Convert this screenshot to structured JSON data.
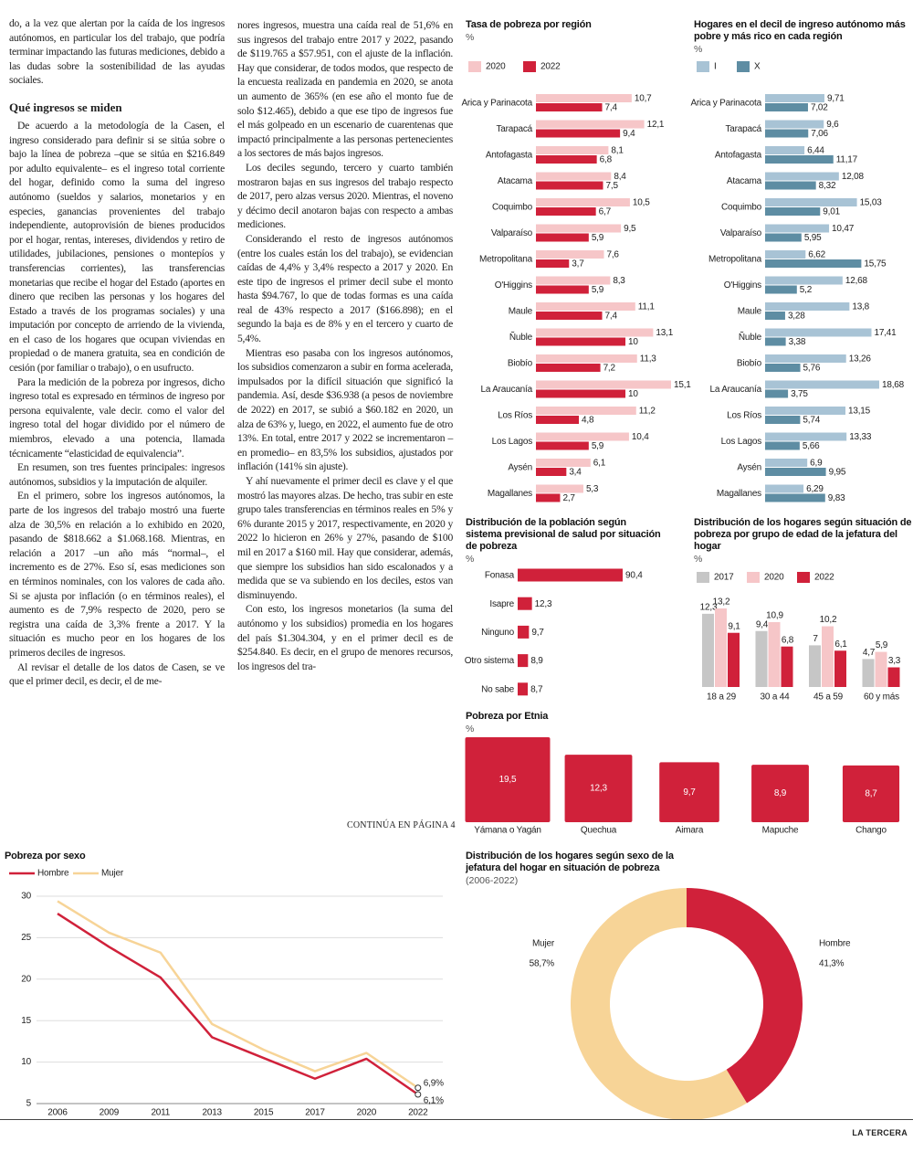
{
  "article": {
    "lead": "do, a la vez que alertan por la caída de los ingresos autónomos, en particular los del trabajo, que podría terminar impactando las futuras mediciones, debido a las dudas sobre la sostenibilidad de las ayudas sociales.",
    "heading": "Qué ingresos se miden",
    "column_1": [
      "De acuerdo a la metodología de la Casen, el ingreso considerado para definir si se sitúa sobre o bajo la línea de pobreza –que se sitúa en $216.849 por adulto equivalente– es el ingreso total corriente del hogar, definido como la suma del ingreso autónomo (sueldos y salarios, monetarios y en especies, ganancias provenientes del trabajo independiente, autoprovisión de bienes producidos por el hogar, rentas, intereses, dividendos y retiro de utilidades, jubilaciones, pensiones o montepíos y transferencias corrientes), las transferencias monetarias que recibe el hogar del Estado (aportes en dinero que reciben las personas y los hogares del Estado a través de los programas sociales) y una imputación por concepto de arriendo de la vivienda, en el caso de los hogares que ocupan viviendas en propiedad o de manera gratuita, sea en condición de cesión (por familiar o trabajo), o en usufructo.",
      "Para la medición de la pobreza por ingresos, dicho ingreso total es expresado en términos de ingreso por persona equivalente, vale decir. como el valor del ingreso total del hogar dividido por el número de miembros, elevado a una potencia, llamada técnicamente “elasticidad de equivalencia”.",
      "En resumen, son tres fuentes principales: ingresos autónomos, subsidios y la imputación de alquiler.",
      "En el primero, sobre los ingresos autónomos, la parte de los ingresos del trabajo mostró una fuerte alza de 30,5% en relación a lo exhibido en 2020, pasando de $818.662 a $1.068.168. Mientras, en relación a 2017 –un año más “normal–, el incremento es de 27%. Eso sí, esas mediciones son en términos nominales, con los valores de cada año. Si se ajusta por inflación (o en términos reales), el aumento es de 7,9% respecto de 2020, pero se registra una caída de 3,3% frente a 2017. Y la situación es mucho peor en los hogares de los primeros deciles de ingresos.",
      "Al revisar el detalle de los datos de Casen, se ve que el primer decil, es decir, el de me-"
    ],
    "column_2": [
      "nores ingresos, muestra una caída real de 51,6% en sus ingresos del trabajo entre 2017 y 2022, pasando de $119.765 a $57.951, con el ajuste de la inflación. Hay que considerar, de todos modos, que respecto de la encuesta realizada en pandemia en 2020, se anota un aumento de 365% (en ese año el monto fue de solo $12.465), debido a que ese tipo de ingresos fue el más golpeado en un escenario de cuarentenas que impactó principalmente a las personas pertenecientes a los sectores de más bajos ingresos.",
      "Los deciles segundo, tercero y cuarto también mostraron bajas en sus ingresos del trabajo respecto de 2017, pero alzas versus 2020. Mientras, el noveno y décimo decil anotaron bajas con respecto a ambas mediciones.",
      "Considerando el resto de ingresos autónomos (entre los cuales están los del trabajo), se evidencian caídas de 4,4% y 3,4% respecto a 2017 y 2020. En este tipo de ingresos el primer decil sube el monto hasta $94.767, lo que de todas formas es una caída real de 43% respecto a 2017 ($166.898); en el segundo la baja es de 8% y en el tercero y cuarto de 5,4%.",
      "Mientras eso pasaba con los ingresos autónomos, los subsidios comenzaron a subir en forma acelerada, impulsados por la difícil situación que significó la pandemia. Así, desde $36.938 (a pesos de noviembre de 2022) en 2017, se subió a $60.182 en 2020, un alza de 63% y, luego, en 2022, el aumento fue de otro 13%. En total, entre 2017 y 2022 se incrementaron –en promedio– en 83,5% los subsidios, ajustados por inflación (141% sin ajuste).",
      "Y ahí nuevamente el primer decil es clave y el que mostró las mayores alzas. De hecho, tras subir en este grupo tales transferencias en términos reales en 5% y 6% durante 2015 y 2017, respectivamente, en 2020 y 2022 lo hicieron en 26% y 27%, pasando de $100 mil en 2017 a $160 mil. Hay que considerar, además, que siempre los subsidios han sido escalonados y a medida que se va subiendo en los deciles, estos van disminuyendo.",
      "Con esto, los ingresos monetarios (la suma del autónomo y los subsidios) promedia en los hogares del país $1.304.304, y en el primer decil es de $254.840. Es decir, en el grupo de menores recursos, los ingresos del tra-"
    ],
    "continued": "CONTINÚA EN PÁGINA 4"
  },
  "chart_data": [
    {
      "type": "bar",
      "horizontal": true,
      "title": "Tasa de pobreza por región",
      "unit": "%",
      "legend": "top-left",
      "categories": [
        "Arica y Parinacota",
        "Tarapacá",
        "Antofagasta",
        "Atacama",
        "Coquimbo",
        "Valparaíso",
        "Metropolitana",
        "O'Higgins",
        "Maule",
        "Ñuble",
        "Biobío",
        "La Araucanía",
        "Los Ríos",
        "Los Lagos",
        "Aysén",
        "Magallanes"
      ],
      "series": [
        {
          "name": "2020",
          "color": "#f6c6c8",
          "values": [
            10.7,
            12.1,
            8.1,
            8.4,
            10.5,
            9.5,
            7.6,
            8.3,
            11.1,
            13.1,
            11.3,
            15.1,
            11.2,
            10.4,
            6.1,
            5.3
          ],
          "value_labels": [
            "10,7",
            "12,1",
            "8,1",
            "8,4",
            "10,5",
            "9,5",
            "7,6",
            "8,3",
            "11,1",
            "13,1",
            "11,3",
            "15,1",
            "11,2",
            "10,4",
            "6,1",
            "5,3"
          ]
        },
        {
          "name": "2022",
          "color": "#d0213a",
          "values": [
            7.4,
            9.4,
            6.8,
            7.5,
            6.7,
            5.9,
            3.7,
            5.9,
            7.4,
            10,
            7.2,
            10,
            4.8,
            5.9,
            3.4,
            2.7
          ],
          "value_labels": [
            "7,4",
            "9,4",
            "6,8",
            "7,5",
            "6,7",
            "5,9",
            "3,7",
            "5,9",
            "7,4",
            "10",
            "7,2",
            "10",
            "4,8",
            "5,9",
            "3,4",
            "2,7"
          ]
        }
      ]
    },
    {
      "type": "bar",
      "horizontal": true,
      "title": "Hogares en el decil de ingreso autónomo más pobre y más rico en cada región",
      "unit": "%",
      "legend": "top-left",
      "categories": [
        "Arica y Parinacota",
        "Tarapacá",
        "Antofagasta",
        "Atacama",
        "Coquimbo",
        "Valparaíso",
        "Metropolitana",
        "O'Higgins",
        "Maule",
        "Ñuble",
        "Biobío",
        "La Araucanía",
        "Los Ríos",
        "Los Lagos",
        "Aysén",
        "Magallanes"
      ],
      "series": [
        {
          "name": "I",
          "color": "#a8c3d5",
          "values": [
            9.71,
            9.6,
            6.44,
            12.08,
            15.03,
            10.47,
            6.62,
            12.68,
            13.8,
            17.41,
            13.26,
            18.68,
            13.15,
            13.33,
            6.9,
            6.29
          ],
          "value_labels": [
            "9,71",
            "9,6",
            "6,44",
            "12,08",
            "15,03",
            "10,47",
            "6,62",
            "12,68",
            "13,8",
            "17,41",
            "13,26",
            "18,68",
            "13,15",
            "13,33",
            "6,9",
            "6,29"
          ]
        },
        {
          "name": "X",
          "color": "#5e8da3",
          "values": [
            7.02,
            7.06,
            11.17,
            8.32,
            9.01,
            5.95,
            15.75,
            5.2,
            3.28,
            3.38,
            5.76,
            3.75,
            5.74,
            5.66,
            9.95,
            9.83
          ],
          "value_labels": [
            "7,02",
            "7,06",
            "11,17",
            "8,32",
            "9,01",
            "5,95",
            "15,75",
            "5,2",
            "3,28",
            "3,38",
            "5,76",
            "3,75",
            "5,74",
            "5,66",
            "9,95",
            "9,83"
          ]
        }
      ]
    },
    {
      "type": "bar",
      "horizontal": true,
      "title": "Distribución de la población según sistema previsional de salud por situación de pobreza",
      "unit": "%",
      "categories": [
        "Fonasa",
        "Isapre",
        "Ninguno",
        "Otro sistema",
        "No sabe"
      ],
      "values": [
        90.4,
        12.3,
        9.7,
        8.9,
        8.7
      ],
      "value_labels": [
        "90,4",
        "12,3",
        "9,7",
        "8,9",
        "8,7"
      ],
      "color": "#d0213a"
    },
    {
      "type": "bar",
      "horizontal": false,
      "title": "Distribución de los hogares según situación de pobreza por grupo de edad de la jefatura del hogar",
      "unit": "%",
      "legend": "top-left",
      "categories": [
        "18 a 29",
        "30 a 44",
        "45 a 59",
        "60 y más"
      ],
      "series": [
        {
          "name": "2017",
          "color": "#c6c6c6",
          "values": [
            12.3,
            9.4,
            7,
            4.7
          ],
          "value_labels": [
            "12,3",
            "9,4",
            "7",
            "4,7"
          ]
        },
        {
          "name": "2020",
          "color": "#f6c6c8",
          "values": [
            13.2,
            10.9,
            10.2,
            5.9
          ],
          "value_labels": [
            "13,2",
            "10,9",
            "10,2",
            "5,9"
          ]
        },
        {
          "name": "2022",
          "color": "#d0213a",
          "values": [
            9.1,
            6.8,
            6.1,
            3.3
          ],
          "value_labels": [
            "9,1",
            "6,8",
            "6,1",
            "3,3"
          ]
        }
      ]
    },
    {
      "type": "square",
      "title": "Pobreza por Etnia",
      "unit": "%",
      "categories": [
        "Yámana o Yagán",
        "Quechua",
        "Aimara",
        "Mapuche",
        "Chango"
      ],
      "values": [
        19.5,
        12.3,
        9.7,
        8.9,
        8.7
      ],
      "value_labels": [
        "19,5",
        "12,3",
        "9,7",
        "8,9",
        "8,7"
      ],
      "color": "#d0213a"
    },
    {
      "type": "line",
      "title": "Pobreza por sexo",
      "legend": "top-left",
      "grid": true,
      "categories": [
        "2006",
        "2009",
        "2011",
        "2013",
        "2015",
        "2017",
        "2020",
        "2022"
      ],
      "ylim": [
        5,
        30
      ],
      "yticks": [
        5,
        10,
        15,
        20,
        25,
        30
      ],
      "series": [
        {
          "name": "Hombre",
          "color": "#d0213a",
          "values": [
            27.9,
            23.9,
            20.2,
            13,
            10.5,
            8,
            10.4,
            6.1
          ],
          "value_labels": [
            null,
            null,
            null,
            null,
            null,
            null,
            null,
            "6,1%"
          ]
        },
        {
          "name": "Mujer",
          "color": "#f7d497",
          "values": [
            29.4,
            25.6,
            23.2,
            14.6,
            11.5,
            8.9,
            11.1,
            6.9
          ],
          "value_labels": [
            null,
            null,
            null,
            null,
            null,
            null,
            null,
            "6,9%"
          ]
        }
      ]
    },
    {
      "type": "donut",
      "title": "Distribución de los hogares según sexo de la jefatura del hogar en situación de pobreza",
      "subtitle": "(2006-2022)",
      "categories": [
        "Hombre",
        "Mujer"
      ],
      "values": [
        41.3,
        58.7
      ],
      "value_labels": [
        "41,3%",
        "58,7%"
      ],
      "colors": [
        "#d0213a",
        "#f7d497"
      ]
    }
  ],
  "footer": {
    "brand": "LA TERCERA"
  }
}
